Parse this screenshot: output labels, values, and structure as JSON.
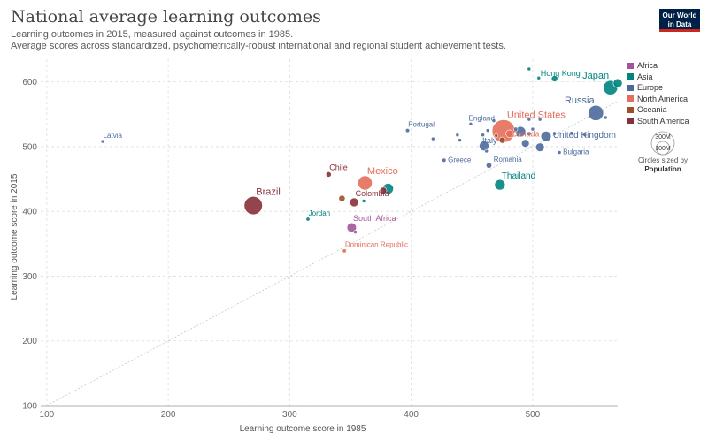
{
  "header": {
    "title": "National average learning outcomes",
    "subtitle_line1": "Learning outcomes in 2015, measured against outcomes in 1985.",
    "subtitle_line2": "Average scores across standardized, psychometrically-robust international and regional student achievement tests."
  },
  "logo": {
    "line1": "Our World",
    "line2": "in Data"
  },
  "legend": {
    "items": [
      {
        "label": "Africa",
        "color": "#a2559c"
      },
      {
        "label": "Asia",
        "color": "#00847e"
      },
      {
        "label": "Europe",
        "color": "#4c6a9c"
      },
      {
        "label": "North America",
        "color": "#e56e5a"
      },
      {
        "label": "Oceania",
        "color": "#9a5129"
      },
      {
        "label": "South America",
        "color": "#883039"
      }
    ],
    "size_labels": [
      "300M",
      "100M"
    ],
    "size_note": "Circles sized by",
    "size_variable": "Population"
  },
  "chart_data": {
    "type": "scatter",
    "title": "National average learning outcomes",
    "xlabel": "Learning outcome score in 1985",
    "ylabel": "Learning outcome score in 2015",
    "xlim": [
      95,
      570
    ],
    "ylim": [
      100,
      635
    ],
    "xticks": [
      "100",
      "200",
      "300",
      "400",
      "500"
    ],
    "yticks": [
      "100",
      "200",
      "300",
      "400",
      "500",
      "600"
    ],
    "grid": true,
    "legend_position": "right",
    "reference_line": "y = x",
    "points": [
      {
        "label": "Latvia",
        "x": 146,
        "y": 508,
        "region": "Europe",
        "pop": 2
      },
      {
        "label": "Brazil",
        "x": 270,
        "y": 409,
        "region": "South America",
        "pop": 205
      },
      {
        "label": "Chile",
        "x": 332,
        "y": 457,
        "region": "South America",
        "pop": 18
      },
      {
        "label": "Jordan",
        "x": 315,
        "y": 388,
        "region": "Asia",
        "pop": 9
      },
      {
        "label": "",
        "x": 343,
        "y": 420,
        "region": "Oceania",
        "pop": 25
      },
      {
        "label": "Colombia",
        "x": 353,
        "y": 414,
        "region": "South America",
        "pop": 48
      },
      {
        "label": "Mexico",
        "x": 362,
        "y": 444,
        "region": "North America",
        "pop": 125
      },
      {
        "label": "",
        "x": 361,
        "y": 416,
        "region": "Asia",
        "pop": 3
      },
      {
        "label": "",
        "x": 381,
        "y": 435,
        "region": "Asia",
        "pop": 70
      },
      {
        "label": "",
        "x": 377,
        "y": 432,
        "region": "South America",
        "pop": 30
      },
      {
        "label": "South Africa",
        "x": 351,
        "y": 375,
        "region": "Africa",
        "pop": 55
      },
      {
        "label": "",
        "x": 354,
        "y": 368,
        "region": "Africa",
        "pop": 3
      },
      {
        "label": "Dominican Republic",
        "x": 345,
        "y": 339,
        "region": "North America",
        "pop": 10
      },
      {
        "label": "Portugal",
        "x": 397,
        "y": 525,
        "region": "Europe",
        "pop": 10
      },
      {
        "label": "",
        "x": 418,
        "y": 512,
        "region": "Europe",
        "pop": 5
      },
      {
        "label": "Greece",
        "x": 427,
        "y": 479,
        "region": "Europe",
        "pop": 11
      },
      {
        "label": "",
        "x": 438,
        "y": 518,
        "region": "Europe",
        "pop": 5
      },
      {
        "label": "",
        "x": 440,
        "y": 510,
        "region": "Europe",
        "pop": 4
      },
      {
        "label": "England",
        "x": 449,
        "y": 535,
        "region": "Europe",
        "pop": 4
      },
      {
        "label": "",
        "x": 459,
        "y": 518,
        "region": "Europe",
        "pop": 5
      },
      {
        "label": "Italy",
        "x": 460,
        "y": 501,
        "region": "Europe",
        "pop": 60
      },
      {
        "label": "Romania",
        "x": 464,
        "y": 471,
        "region": "Europe",
        "pop": 20
      },
      {
        "label": "",
        "x": 463,
        "y": 525,
        "region": "Europe",
        "pop": 5
      },
      {
        "label": "",
        "x": 468,
        "y": 540,
        "region": "Europe",
        "pop": 5
      },
      {
        "label": "",
        "x": 462,
        "y": 493,
        "region": "Europe",
        "pop": 5
      },
      {
        "label": "Thailand",
        "x": 473,
        "y": 441,
        "region": "Asia",
        "pop": 68
      },
      {
        "label": "",
        "x": 470,
        "y": 517,
        "region": "Oceania",
        "pop": 5
      },
      {
        "label": "",
        "x": 475,
        "y": 510,
        "region": "Oceania",
        "pop": 24
      },
      {
        "label": "United States",
        "x": 476,
        "y": 524,
        "region": "North America",
        "pop": 320
      },
      {
        "label": "Canada",
        "x": 481,
        "y": 520,
        "region": "North America",
        "pop": 36
      },
      {
        "label": "",
        "x": 486,
        "y": 527,
        "region": "Europe",
        "pop": 10
      },
      {
        "label": "",
        "x": 488,
        "y": 518,
        "region": "Europe",
        "pop": 8
      },
      {
        "label": "",
        "x": 490,
        "y": 523,
        "region": "Europe",
        "pop": 66
      },
      {
        "label": "",
        "x": 494,
        "y": 505,
        "region": "Europe",
        "pop": 38
      },
      {
        "label": "",
        "x": 497,
        "y": 520,
        "region": "Europe",
        "pop": 10
      },
      {
        "label": "",
        "x": 497,
        "y": 542,
        "region": "Europe",
        "pop": 5
      },
      {
        "label": "",
        "x": 500,
        "y": 527,
        "region": "Europe",
        "pop": 5
      },
      {
        "label": "",
        "x": 506,
        "y": 542,
        "region": "Europe",
        "pop": 5
      },
      {
        "label": "",
        "x": 506,
        "y": 499,
        "region": "Europe",
        "pop": 46
      },
      {
        "label": "United Kingdom",
        "x": 511,
        "y": 516,
        "region": "Europe",
        "pop": 65
      },
      {
        "label": "",
        "x": 518,
        "y": 520,
        "region": "Europe",
        "pop": 5
      },
      {
        "label": "Bulgaria",
        "x": 522,
        "y": 491,
        "region": "Europe",
        "pop": 7
      },
      {
        "label": "",
        "x": 532,
        "y": 521,
        "region": "Europe",
        "pop": 5
      },
      {
        "label": "",
        "x": 543,
        "y": 518,
        "region": "Europe",
        "pop": 5
      },
      {
        "label": "Russia",
        "x": 552,
        "y": 552,
        "region": "Europe",
        "pop": 144
      },
      {
        "label": "",
        "x": 560,
        "y": 545,
        "region": "Europe",
        "pop": 5
      },
      {
        "label": "",
        "x": 497,
        "y": 620,
        "region": "Asia",
        "pop": 5
      },
      {
        "label": "Hong Kong",
        "x": 505,
        "y": 606,
        "region": "Asia",
        "pop": 7
      },
      {
        "label": "",
        "x": 518,
        "y": 605,
        "region": "Asia",
        "pop": 24
      },
      {
        "label": "Japan",
        "x": 564,
        "y": 591,
        "region": "Asia",
        "pop": 127
      },
      {
        "label": "",
        "x": 570,
        "y": 598,
        "region": "Asia",
        "pop": 50
      }
    ]
  }
}
